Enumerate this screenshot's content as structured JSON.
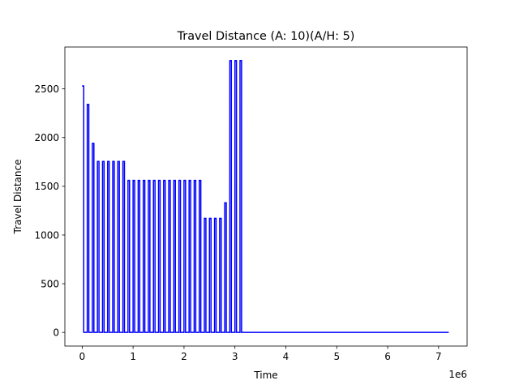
{
  "chart_data": {
    "type": "line",
    "title": "Travel Distance (A: 10)(A/H: 5)",
    "xlabel": "Time",
    "ylabel": "Travel Distance",
    "x_offset_label": "1e6",
    "x_scale": 1000000,
    "xlim": [
      -340000,
      7560000
    ],
    "ylim": [
      -140,
      2930
    ],
    "x_ticks": [
      0,
      1000000,
      2000000,
      3000000,
      4000000,
      5000000,
      6000000,
      7000000
    ],
    "x_tick_labels": [
      "0",
      "1",
      "2",
      "3",
      "4",
      "5",
      "6",
      "7"
    ],
    "y_ticks": [
      0,
      500,
      1000,
      1500,
      2000,
      2500
    ],
    "y_tick_labels": [
      "0",
      "500",
      "1000",
      "1500",
      "2000",
      "2500"
    ],
    "grid": false,
    "legend": "none",
    "series": [
      {
        "color": "#0000ff",
        "pulse_width": 30000,
        "pulses": [
          {
            "start": 0,
            "value": 2530
          },
          {
            "start": 100000,
            "value": 2340
          },
          {
            "start": 200000,
            "value": 1940
          },
          {
            "start": 300000,
            "value": 1755
          },
          {
            "start": 400000,
            "value": 1755
          },
          {
            "start": 500000,
            "value": 1755
          },
          {
            "start": 600000,
            "value": 1755
          },
          {
            "start": 700000,
            "value": 1755
          },
          {
            "start": 800000,
            "value": 1755
          },
          {
            "start": 900000,
            "value": 1560
          },
          {
            "start": 1000000,
            "value": 1560
          },
          {
            "start": 1100000,
            "value": 1560
          },
          {
            "start": 1200000,
            "value": 1560
          },
          {
            "start": 1300000,
            "value": 1560
          },
          {
            "start": 1400000,
            "value": 1560
          },
          {
            "start": 1500000,
            "value": 1560
          },
          {
            "start": 1600000,
            "value": 1560
          },
          {
            "start": 1700000,
            "value": 1560
          },
          {
            "start": 1800000,
            "value": 1560
          },
          {
            "start": 1900000,
            "value": 1560
          },
          {
            "start": 2000000,
            "value": 1560
          },
          {
            "start": 2100000,
            "value": 1560
          },
          {
            "start": 2200000,
            "value": 1560
          },
          {
            "start": 2300000,
            "value": 1560
          },
          {
            "start": 2400000,
            "value": 1170
          },
          {
            "start": 2500000,
            "value": 1170
          },
          {
            "start": 2600000,
            "value": 1170
          },
          {
            "start": 2700000,
            "value": 1170
          },
          {
            "start": 2800000,
            "value": 1330
          },
          {
            "start": 2900000,
            "value": 2790
          },
          {
            "start": 3000000,
            "value": 2790
          },
          {
            "start": 3100000,
            "value": 2790
          }
        ],
        "end_x": 7200000,
        "baseline": 0
      }
    ]
  }
}
